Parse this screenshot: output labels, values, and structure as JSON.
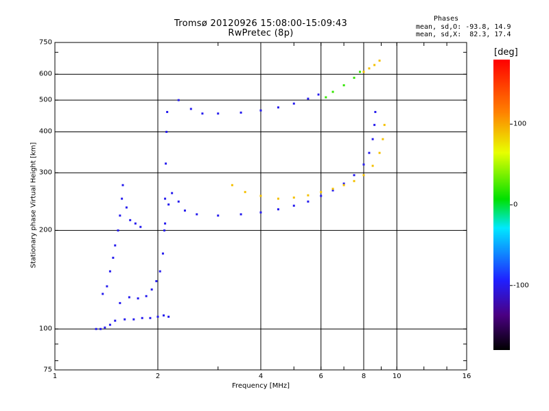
{
  "header": {
    "title_line1": "Tromsø 20120926 15:08:00-15:09:43",
    "title_line2": "RwPretec (8p)",
    "stats_title": "Phases",
    "stats_line1": "mean, sd,O: -93.8, 14.9",
    "stats_line2": "mean, sd,X:  82.3, 17.4"
  },
  "colorbar": {
    "unit_label": "[deg]",
    "ticks": [
      "100",
      "0",
      "-100"
    ],
    "tick_values": [
      100,
      0,
      -100
    ],
    "range": [
      -180,
      180
    ]
  },
  "chart_data": {
    "type": "scatter",
    "title": "Tromsø 20120926 15:08:00-15:09:43",
    "subtitle": "RwPretec (8p)",
    "xlabel": "Frequency [MHz]",
    "ylabel": "Stationary phase Virtual Height [km]",
    "xscale": "log",
    "yscale": "log",
    "xlim": [
      1,
      16
    ],
    "ylim": [
      75,
      750
    ],
    "xticks": [
      1,
      2,
      4,
      6,
      8,
      10,
      16
    ],
    "xtick_labels": [
      "1",
      "2",
      "4",
      "6",
      "8",
      "10",
      "16"
    ],
    "yticks": [
      75,
      100,
      200,
      300,
      400,
      500,
      600,
      750
    ],
    "ytick_labels": [
      "75",
      "100",
      "200",
      "300",
      "400",
      "500",
      "600",
      "750"
    ],
    "grid": true,
    "color_variable": "phase [deg]",
    "series": [
      {
        "points": [
          [
            1.32,
            100
          ],
          [
            1.36,
            100
          ],
          [
            1.4,
            101
          ],
          [
            1.45,
            103
          ],
          [
            1.5,
            106
          ],
          [
            1.6,
            107
          ],
          [
            1.7,
            107
          ],
          [
            1.8,
            108
          ],
          [
            1.9,
            108
          ],
          [
            2.0,
            109
          ],
          [
            2.08,
            110
          ],
          [
            2.15,
            109
          ]
        ],
        "phase": -100
      },
      {
        "points": [
          [
            1.38,
            128
          ],
          [
            1.42,
            135
          ],
          [
            1.45,
            150
          ],
          [
            1.48,
            165
          ],
          [
            1.5,
            180
          ],
          [
            1.53,
            200
          ],
          [
            1.55,
            222
          ],
          [
            1.57,
            250
          ],
          [
            1.58,
            275
          ],
          [
            1.62,
            235
          ],
          [
            1.66,
            215
          ],
          [
            1.72,
            210
          ],
          [
            1.78,
            205
          ]
        ],
        "phase": -100
      },
      {
        "points": [
          [
            1.55,
            120
          ],
          [
            1.65,
            125
          ],
          [
            1.75,
            124
          ],
          [
            1.85,
            126
          ],
          [
            1.92,
            132
          ],
          [
            1.98,
            140
          ],
          [
            2.03,
            150
          ],
          [
            2.07,
            170
          ],
          [
            2.09,
            200
          ],
          [
            2.1,
            250
          ],
          [
            2.11,
            320
          ],
          [
            2.12,
            400
          ],
          [
            2.13,
            460
          ]
        ],
        "phase": -100
      },
      {
        "points": [
          [
            2.1,
            210
          ],
          [
            2.15,
            240
          ],
          [
            2.2,
            260
          ],
          [
            2.3,
            245
          ],
          [
            2.4,
            230
          ],
          [
            2.6,
            224
          ],
          [
            3.0,
            222
          ],
          [
            3.5,
            224
          ],
          [
            4.0,
            227
          ],
          [
            4.5,
            232
          ],
          [
            5.0,
            238
          ],
          [
            5.5,
            245
          ],
          [
            6.0,
            255
          ],
          [
            6.5,
            265
          ],
          [
            7.0,
            278
          ],
          [
            7.5,
            295
          ],
          [
            8.0,
            318
          ],
          [
            8.3,
            345
          ],
          [
            8.5,
            380
          ],
          [
            8.6,
            420
          ],
          [
            8.65,
            460
          ]
        ],
        "phase": -100
      },
      {
        "points": [
          [
            2.3,
            500
          ],
          [
            2.5,
            470
          ],
          [
            2.7,
            455
          ],
          [
            3.0,
            455
          ],
          [
            3.5,
            458
          ],
          [
            4.0,
            465
          ],
          [
            4.5,
            475
          ],
          [
            5.0,
            488
          ],
          [
            5.5,
            505
          ],
          [
            5.9,
            520
          ]
        ],
        "phase": -100
      },
      {
        "points": [
          [
            6.2,
            510
          ],
          [
            6.5,
            530
          ],
          [
            7.0,
            555
          ],
          [
            7.5,
            585
          ],
          [
            7.8,
            610
          ]
        ],
        "phase": 20
      },
      {
        "points": [
          [
            3.3,
            275
          ],
          [
            3.6,
            262
          ],
          [
            4.0,
            255
          ],
          [
            4.5,
            250
          ],
          [
            5.0,
            252
          ],
          [
            5.5,
            256
          ],
          [
            6.0,
            262
          ],
          [
            6.5,
            268
          ],
          [
            7.0,
            275
          ],
          [
            7.5,
            283
          ],
          [
            8.0,
            295
          ],
          [
            8.5,
            315
          ],
          [
            8.9,
            345
          ],
          [
            9.1,
            380
          ],
          [
            9.2,
            420
          ]
        ],
        "phase": 90
      },
      {
        "points": [
          [
            8.0,
            610
          ],
          [
            8.3,
            625
          ],
          [
            8.6,
            640
          ],
          [
            8.9,
            660
          ]
        ],
        "phase": 90
      }
    ]
  }
}
